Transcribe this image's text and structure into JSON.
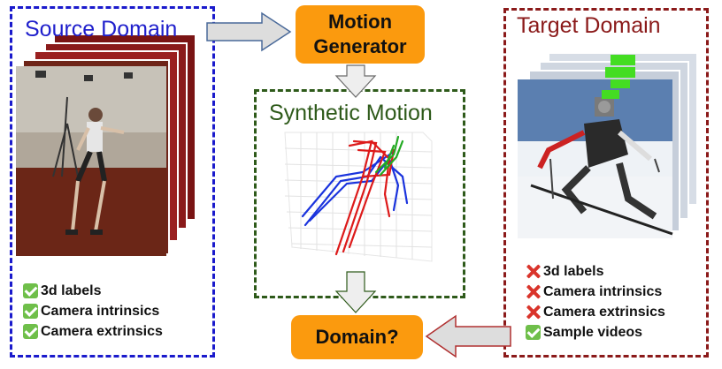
{
  "source": {
    "title": "Source Domain",
    "items": [
      {
        "mark": "check-icon",
        "label": "3d labels"
      },
      {
        "mark": "check-icon",
        "label": "Camera intrinsics"
      },
      {
        "mark": "check-icon",
        "label": "Camera extrinsics"
      }
    ]
  },
  "motion_generator": {
    "line1": "Motion",
    "line2": "Generator"
  },
  "synthetic": {
    "title": "Synthetic Motion"
  },
  "target": {
    "title": "Target Domain",
    "items": [
      {
        "mark": "cross-icon",
        "label": "3d labels"
      },
      {
        "mark": "cross-icon",
        "label": "Camera intrinsics"
      },
      {
        "mark": "cross-icon",
        "label": "Camera extrinsics"
      },
      {
        "mark": "check-icon",
        "label": "Sample videos"
      }
    ]
  },
  "domain_box": {
    "label": "Domain?"
  },
  "colors": {
    "source_blue": "#1a1acc",
    "synthetic_green": "#2e5a1a",
    "target_red": "#8b1a1a",
    "box_orange": "#fb9a0e"
  }
}
